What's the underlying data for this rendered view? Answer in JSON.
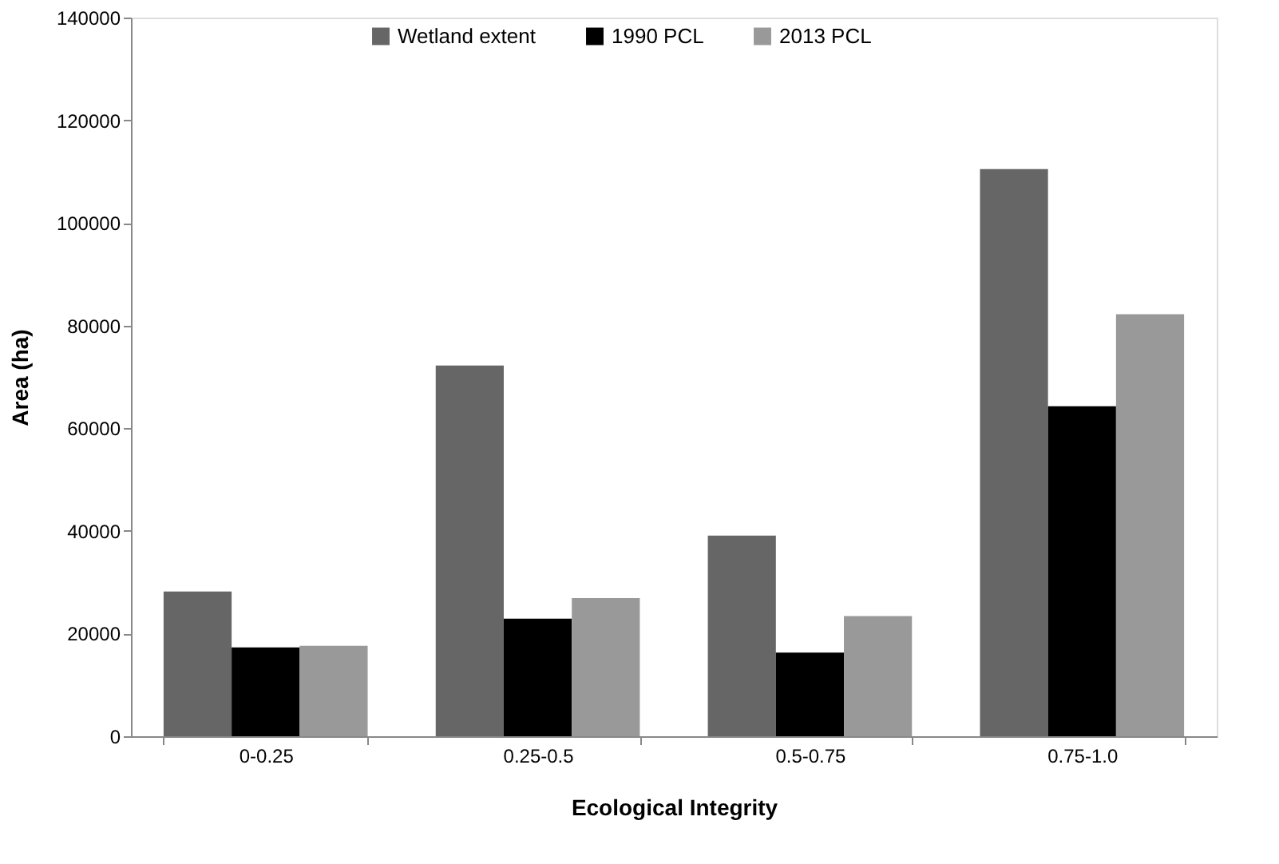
{
  "chart_data": {
    "type": "bar",
    "xlabel": "Ecological Integrity",
    "ylabel": "Area  (ha)",
    "categories": [
      "0-0.25",
      "0.25-0.5",
      "0.5-0.75",
      "0.75-1.0"
    ],
    "series": [
      {
        "name": "Wetland extent",
        "color": "#666666",
        "values": [
          28200,
          72200,
          39100,
          110500
        ]
      },
      {
        "name": "1990 PCL",
        "color": "#000000",
        "values": [
          17300,
          22900,
          16300,
          64300
        ]
      },
      {
        "name": "2013 PCL",
        "color": "#999999",
        "values": [
          17600,
          26900,
          23400,
          82200
        ]
      }
    ],
    "ylim": [
      0,
      140000
    ],
    "yticks": [
      0,
      20000,
      40000,
      60000,
      80000,
      100000,
      120000,
      140000
    ],
    "grid": false,
    "legend": "top"
  }
}
